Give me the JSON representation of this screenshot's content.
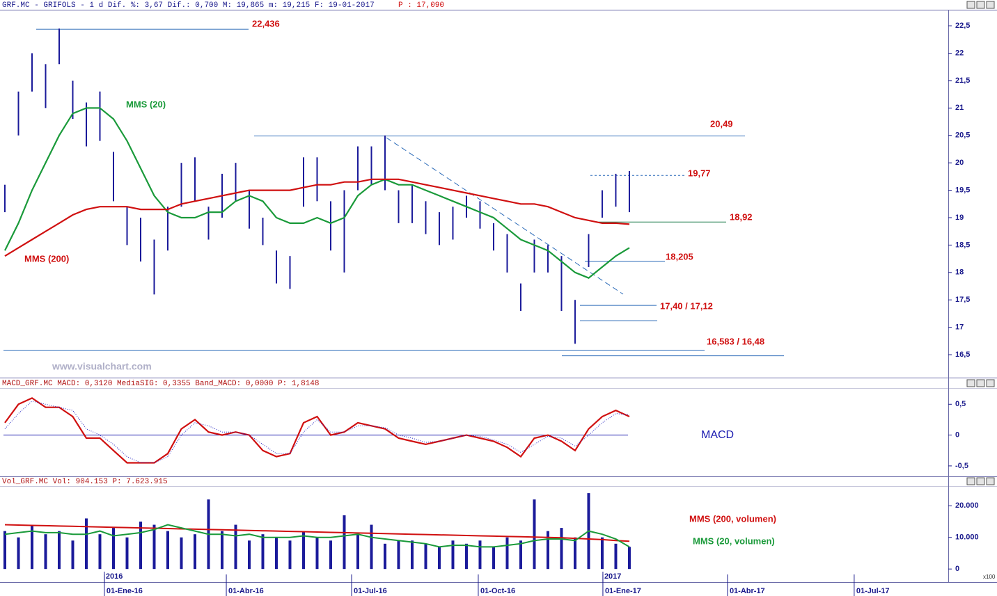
{
  "chart_data": [
    {
      "type": "range",
      "header": "GRF.MC - GRIFOLS -  1 d Dif. %: 3,67 Dif.: 0,700 M: 19,865 m: 19,215 F: 19-01-2017",
      "header_price": "P : 17,090",
      "watermark": "www.visualchart.com",
      "color": "#1a1a9a",
      "x": [
        0,
        1,
        2,
        3,
        4,
        5,
        6,
        7,
        8,
        9,
        10,
        11,
        12,
        13,
        14,
        15,
        16,
        17,
        18,
        19,
        20,
        21,
        22,
        23,
        24,
        25,
        26,
        27,
        28,
        29,
        30,
        31,
        32,
        33,
        34,
        35,
        36,
        37,
        38,
        39,
        40,
        41,
        42,
        43,
        44,
        45,
        46
      ],
      "xlim": [
        -0.359,
        69.49
      ],
      "xticks": [
        {
          "value": 7.33,
          "label": "01-Ene-16"
        },
        {
          "value": 16.31,
          "label": "01-Abr-16"
        },
        {
          "value": 25.54,
          "label": "01-Jul-16"
        },
        {
          "value": 34.87,
          "label": "01-Oct-16"
        },
        {
          "value": 44.05,
          "label": "01-Ene-17"
        },
        {
          "value": 53.23,
          "label": "01-Abr-17"
        },
        {
          "value": 62.56,
          "label": "01-Jul-17"
        }
      ],
      "year_ticks": [
        {
          "value": 7.33,
          "label": "2016"
        },
        {
          "value": 44.05,
          "label": "2017"
        }
      ],
      "ylim": [
        16.12,
        22.78
      ],
      "yticks": [
        {
          "value": 16.5,
          "label": "16,5"
        },
        17,
        {
          "value": 17.5,
          "label": "17,5"
        },
        18,
        {
          "value": 18.5,
          "label": "18,5"
        },
        19,
        {
          "value": 19.5,
          "label": "19,5"
        },
        20,
        {
          "value": 20.5,
          "label": "20,5"
        },
        21,
        {
          "value": 21.5,
          "label": "21,5"
        },
        22,
        {
          "value": 22.5,
          "label": "22,5"
        }
      ],
      "lows": [
        19.1,
        20.5,
        21.3,
        21.0,
        21.8,
        20.8,
        20.3,
        20.4,
        19.3,
        18.5,
        18.2,
        17.6,
        18.4,
        19.2,
        19.3,
        18.6,
        19.0,
        19.3,
        18.8,
        18.5,
        17.8,
        17.7,
        19.2,
        19.3,
        18.4,
        18.0,
        19.5,
        19.6,
        19.5,
        18.9,
        18.9,
        18.7,
        18.5,
        18.6,
        19.0,
        18.8,
        18.4,
        18.0,
        17.3,
        18.0,
        18.0,
        17.3,
        16.7,
        18.1,
        19.0,
        19.2,
        19.1
      ],
      "highs": [
        19.6,
        21.3,
        22.0,
        21.8,
        22.45,
        21.5,
        21.1,
        21.3,
        20.2,
        19.2,
        19.0,
        18.6,
        19.2,
        20.0,
        20.1,
        19.2,
        19.8,
        20.0,
        19.5,
        19.0,
        18.4,
        18.3,
        20.1,
        20.1,
        19.3,
        19.5,
        20.3,
        20.3,
        20.5,
        19.5,
        19.6,
        19.3,
        19.1,
        19.2,
        19.4,
        19.3,
        18.9,
        18.7,
        17.8,
        18.6,
        18.5,
        18.3,
        17.5,
        18.7,
        19.5,
        19.8,
        19.85
      ],
      "series": [
        {
          "name": "MMS (20)",
          "color": "#1a9a3a",
          "values": [
            18.4,
            18.9,
            19.5,
            20.0,
            20.5,
            20.9,
            21.0,
            21.0,
            20.8,
            20.4,
            19.9,
            19.4,
            19.1,
            19.0,
            19.0,
            19.1,
            19.1,
            19.3,
            19.4,
            19.3,
            19.0,
            18.9,
            18.9,
            19.0,
            18.9,
            19.0,
            19.4,
            19.6,
            19.7,
            19.6,
            19.6,
            19.5,
            19.4,
            19.3,
            19.2,
            19.1,
            19.0,
            18.8,
            18.6,
            18.5,
            18.4,
            18.2,
            18.0,
            17.9,
            18.1,
            18.3,
            18.45
          ]
        },
        {
          "name": "MMS (200)",
          "color": "#d01010",
          "values": [
            18.3,
            18.45,
            18.6,
            18.75,
            18.9,
            19.05,
            19.15,
            19.2,
            19.2,
            19.2,
            19.15,
            19.15,
            19.15,
            19.25,
            19.3,
            19.35,
            19.4,
            19.45,
            19.5,
            19.5,
            19.5,
            19.5,
            19.55,
            19.6,
            19.6,
            19.65,
            19.65,
            19.7,
            19.7,
            19.7,
            19.65,
            19.6,
            19.55,
            19.5,
            19.45,
            19.4,
            19.35,
            19.3,
            19.25,
            19.25,
            19.2,
            19.1,
            19.0,
            18.95,
            18.9,
            18.9,
            18.88
          ]
        }
      ],
      "levels": [
        {
          "label": "22,436",
          "values": [
            22.436
          ]
        },
        {
          "label": "20,49",
          "values": [
            20.49
          ]
        },
        {
          "label": "19,77",
          "values": [
            19.77
          ]
        },
        {
          "label": "18,92",
          "values": [
            18.92
          ]
        },
        {
          "label": "18,205",
          "values": [
            18.205
          ]
        },
        {
          "label": "17,40 / 17,12",
          "values": [
            17.4,
            17.12
          ]
        },
        {
          "label": "16,583 / 16,48",
          "values": [
            16.583,
            16.48
          ]
        }
      ]
    },
    {
      "type": "line",
      "header": "MACD_GRF.MC MACD: 0,3120 MediaSIG: 0,3355 Band_MACD: 0,0000 P: 1,8148",
      "ylim": [
        -0.67,
        0.74
      ],
      "yticks": [
        {
          "value": -0.5,
          "label": "-0,5"
        },
        0,
        {
          "value": 0.5,
          "label": "0,5"
        }
      ],
      "series": [
        {
          "name": "MACD",
          "color": "#d01010",
          "values": [
            0.2,
            0.5,
            0.6,
            0.45,
            0.45,
            0.3,
            -0.05,
            -0.05,
            -0.25,
            -0.45,
            -0.45,
            -0.45,
            -0.3,
            0.1,
            0.25,
            0.05,
            0.0,
            0.05,
            0.0,
            -0.25,
            -0.35,
            -0.3,
            0.2,
            0.3,
            0.0,
            0.05,
            0.2,
            0.15,
            0.1,
            -0.05,
            -0.1,
            -0.15,
            -0.1,
            -0.05,
            0.0,
            -0.05,
            -0.1,
            -0.2,
            -0.35,
            -0.05,
            0.0,
            -0.1,
            -0.25,
            0.1,
            0.3,
            0.4,
            0.3
          ]
        },
        {
          "color": "#2020c0",
          "values": [
            0.1,
            0.35,
            0.55,
            0.5,
            0.45,
            0.4,
            0.1,
            0.0,
            -0.15,
            -0.35,
            -0.45,
            -0.45,
            -0.35,
            0.0,
            0.2,
            0.15,
            0.05,
            0.05,
            0.0,
            -0.15,
            -0.3,
            -0.3,
            0.05,
            0.25,
            0.05,
            0.05,
            0.15,
            0.15,
            0.12,
            0.0,
            -0.05,
            -0.12,
            -0.1,
            -0.05,
            0.0,
            -0.02,
            -0.08,
            -0.15,
            -0.28,
            -0.15,
            -0.02,
            -0.05,
            -0.18,
            0.0,
            0.2,
            0.35,
            0.33
          ]
        }
      ]
    },
    {
      "type": "bar",
      "header": "Vol_GRF.MC Vol: 904.153 P: 7.623.915",
      "unit": "x100",
      "color": "#1a1a9a",
      "ylim": [
        -3700,
        26000
      ],
      "yticks": [
        0,
        {
          "value": 10000,
          "label": "10.000"
        },
        {
          "value": 20000,
          "label": "20.000"
        }
      ],
      "values": [
        12000,
        10000,
        14000,
        11000,
        12000,
        9000,
        16000,
        11000,
        13000,
        10000,
        15000,
        14000,
        12000,
        10000,
        11000,
        22000,
        12000,
        14000,
        9000,
        11000,
        10000,
        9000,
        12000,
        10000,
        9000,
        17000,
        11000,
        14000,
        8000,
        9000,
        9000,
        8000,
        7000,
        9000,
        8000,
        9000,
        7000,
        10000,
        9000,
        22000,
        12000,
        13000,
        10000,
        24000,
        10000,
        8000,
        7000
      ],
      "series": [
        {
          "name": "MMS (200, volumen)",
          "color": "#d01010",
          "values": [
            14000,
            13900,
            13800,
            13700,
            13600,
            13500,
            13400,
            13300,
            13200,
            13100,
            13000,
            12900,
            12800,
            12700,
            12600,
            12500,
            12400,
            12300,
            12200,
            12100,
            12000,
            11900,
            11800,
            11700,
            11600,
            11500,
            11400,
            11300,
            11200,
            11100,
            11000,
            10900,
            10800,
            10700,
            10600,
            10500,
            10400,
            10300,
            10200,
            10100,
            10000,
            9900,
            9700,
            9500,
            9300,
            9000,
            8800
          ]
        },
        {
          "name": "MMS (20, volumen)",
          "color": "#1a9a3a",
          "values": [
            11000,
            11500,
            12000,
            11500,
            11500,
            11000,
            11000,
            12000,
            10500,
            11000,
            11500,
            12500,
            14000,
            13000,
            12000,
            11000,
            11000,
            10500,
            11000,
            10000,
            10000,
            10000,
            10500,
            10000,
            10000,
            10500,
            11000,
            10000,
            9500,
            9000,
            8500,
            8000,
            7000,
            7500,
            7500,
            7000,
            7000,
            7500,
            8000,
            9000,
            9500,
            9500,
            9000,
            12000,
            11000,
            9500,
            7000
          ]
        }
      ]
    }
  ]
}
